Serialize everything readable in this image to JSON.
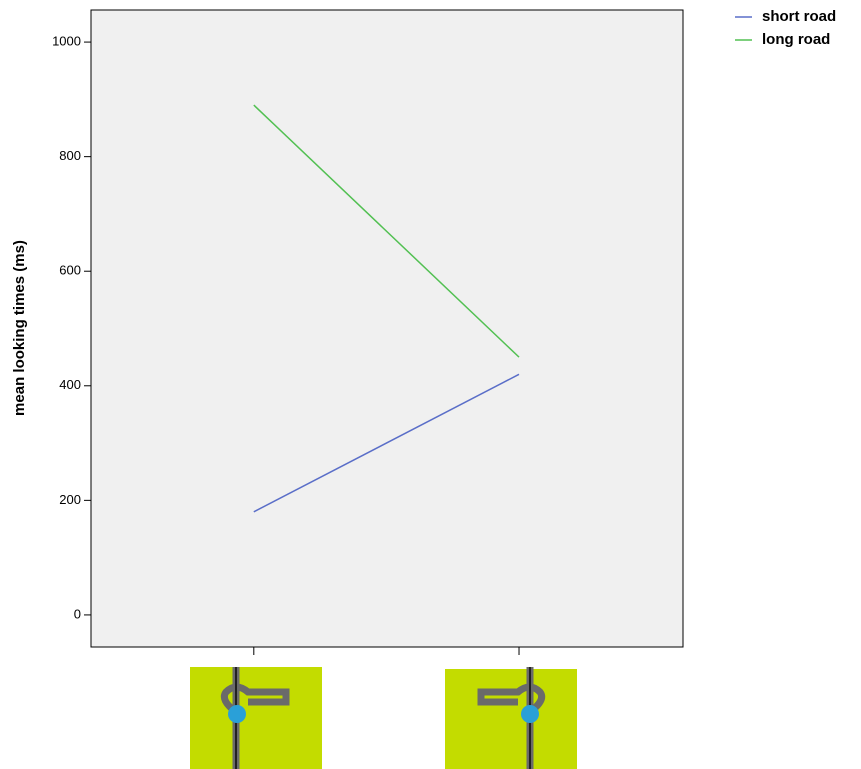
{
  "chart_data": {
    "type": "line",
    "y_label": "mean looking times (ms)",
    "categories": [
      null,
      null
    ],
    "series": [
      {
        "name": "short road",
        "color": "#5a6ec8",
        "values": [
          180,
          420
        ]
      },
      {
        "name": "long road",
        "color": "#52c052",
        "values": [
          890,
          450
        ]
      }
    ],
    "ylim": [
      -56,
      1056
    ],
    "yticks": [
      0,
      200,
      400,
      600,
      800,
      1000
    ],
    "background": "#f0f0f0",
    "legend": "top-right"
  }
}
